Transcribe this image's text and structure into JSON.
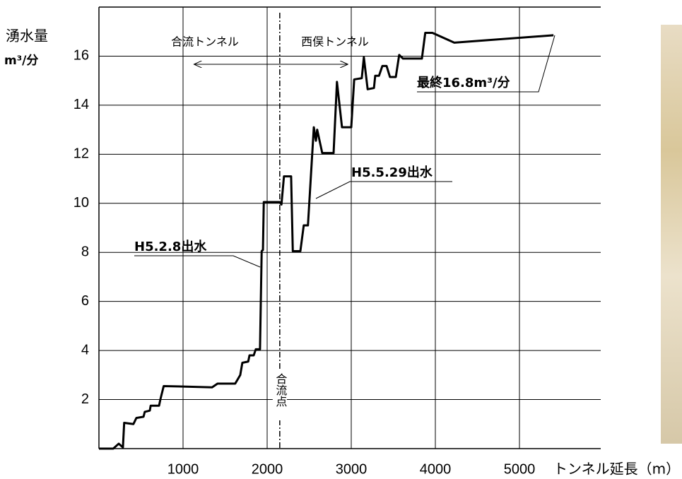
{
  "chart_data": {
    "type": "line",
    "y_label": "湧水量",
    "y_unit": "m³/分",
    "x_label": "トンネル延長（m）",
    "x": [
      0,
      170,
      235,
      285,
      300,
      410,
      445,
      530,
      545,
      605,
      615,
      715,
      730,
      770,
      1345,
      1410,
      1620,
      1680,
      1705,
      1775,
      1790,
      1840,
      1865,
      1915,
      1935,
      1950,
      1960,
      2150,
      2170,
      2200,
      2285,
      2305,
      2395,
      2435,
      2485,
      2555,
      2580,
      2595,
      2655,
      2790,
      2830,
      2890,
      3000,
      3035,
      3125,
      3150,
      3195,
      3270,
      3285,
      3330,
      3370,
      3420,
      3460,
      3530,
      3570,
      3615,
      3840,
      3880,
      3965,
      4225,
      5405
    ],
    "series": [
      {
        "color": "#000000",
        "values": [
          0,
          0,
          0.2,
          0.05,
          1.05,
          1.0,
          1.25,
          1.3,
          1.5,
          1.55,
          1.75,
          1.75,
          2.0,
          2.55,
          2.5,
          2.65,
          2.65,
          3.0,
          3.5,
          3.55,
          3.8,
          3.8,
          4.05,
          4.05,
          8.05,
          8.1,
          10.05,
          10.05,
          9.95,
          11.1,
          11.1,
          8.05,
          8.05,
          9.1,
          9.1,
          13.1,
          12.55,
          13.0,
          12.05,
          12.05,
          14.95,
          13.1,
          13.1,
          15.05,
          15.1,
          15.95,
          14.65,
          14.7,
          15.2,
          15.2,
          15.6,
          15.6,
          15.15,
          15.15,
          16.05,
          15.9,
          15.9,
          16.95,
          16.95,
          16.55,
          16.85
        ]
      }
    ],
    "xlim": [
      0,
      6000
    ],
    "xticks": [
      1000,
      2000,
      3000,
      4000,
      5000
    ],
    "ylim": [
      0,
      18
    ],
    "yticks": [
      2,
      4,
      6,
      8,
      10,
      12,
      14,
      16
    ],
    "grid": true,
    "reference_line": {
      "x": 2150,
      "label": "合流点"
    },
    "span": {
      "x": [
        1130,
        2960
      ],
      "left_label": "合流トンネル",
      "right_label": "西俣トンネル"
    },
    "annotations": [
      "H5.2.8出水",
      "H5.5.29出水",
      "最終16.8m³/分"
    ]
  }
}
